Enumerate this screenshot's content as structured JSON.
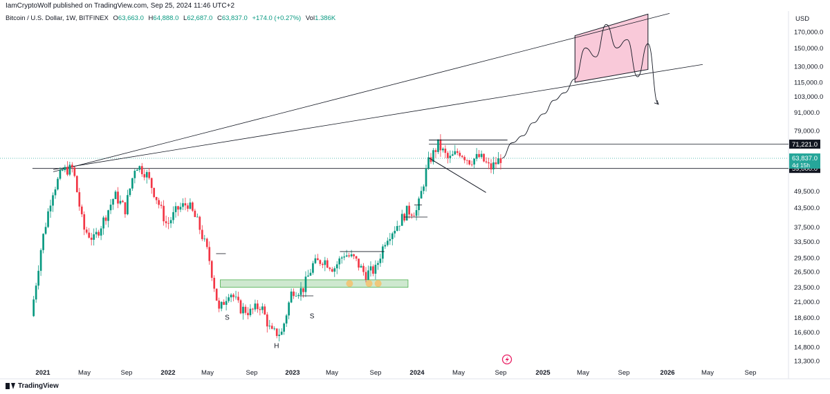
{
  "header": {
    "published": "IamCryptoWolf published on TradingView.com, Sep 25, 2024 11:46 UTC+2"
  },
  "legend": {
    "symbol": "Bitcoin / U.S. Dollar, 1W, BITFINEX",
    "open_label": "O",
    "open": "63,663.0",
    "high_label": "H",
    "high": "64,888.0",
    "low_label": "L",
    "low": "62,687.0",
    "close_label": "C",
    "close": "63,837.0",
    "change": "+174.0 (+0.27%)",
    "vol_label": "Vol",
    "vol": "1.386K"
  },
  "axis": {
    "currency": "USD"
  },
  "footer": {
    "brand": "TradingView"
  },
  "colors": {
    "up": "#089981",
    "down": "#f23645",
    "support_zone": "#a5d6a7",
    "target_zone": "#f8bbd0",
    "price_label_bg": "#26a69a",
    "level_label_bg": "#131722",
    "pivot_marker": "#f5c16c",
    "accent_icon": "#e91e63"
  },
  "chart_data": {
    "type": "candlestick",
    "title": "",
    "timeframe": "1W",
    "exchange": "BITFINEX",
    "price_scale": "log",
    "y_ticks": [
      13300,
      14800,
      16600,
      18600,
      21000,
      23500,
      26500,
      29500,
      33500,
      37500,
      43500,
      49500,
      59000,
      63837,
      71221,
      79000,
      91000,
      103000,
      115000,
      130000,
      150000,
      170000
    ],
    "y_tick_labels": [
      "13,300.0",
      "14,800.0",
      "16,600.0",
      "18,600.0",
      "21,000.0",
      "23,500.0",
      "26,500.0",
      "29,500.0",
      "33,500.0",
      "37,500.0",
      "43,500.0",
      "49,500.0",
      "59,000.0",
      "63,837.0",
      "71,221.0",
      "79,000.0",
      "91,000.0",
      "103,000.0",
      "115,000.0",
      "130,000.0",
      "150,000.0",
      "170,000.0"
    ],
    "x_tick_labels": [
      "2021",
      "May",
      "Sep",
      "2022",
      "May",
      "Sep",
      "2023",
      "May",
      "Sep",
      "2024",
      "May",
      "Sep",
      "2025",
      "May",
      "Sep",
      "2026",
      "May",
      "Sep"
    ],
    "x_ticks_bold": [
      "2021",
      "2022",
      "2023",
      "2024",
      "2025",
      "2026"
    ],
    "current_price": {
      "value": "63,837.0",
      "countdown": "4d 15h"
    },
    "horizontal_levels": [
      {
        "value": 71221,
        "label": "71,221.0"
      },
      {
        "value": 59000,
        "label": "59,000.0"
      }
    ],
    "support_zone": {
      "low": 23500,
      "high": 24900,
      "from": "2022-Jun",
      "to": "2023-Dec"
    },
    "target_zone": {
      "low": 113000,
      "high": 195000,
      "from": "2025-Apr",
      "to": "2025-Nov"
    },
    "pattern_labels": [
      "S",
      "H",
      "S"
    ],
    "price_path": [
      [
        "2020-Dec",
        18800
      ],
      [
        "2021-Jan",
        33000
      ],
      [
        "2021-Feb",
        49000
      ],
      [
        "2021-Mar",
        58000
      ],
      [
        "2021-Apr",
        59000
      ],
      [
        "2021-May",
        37000
      ],
      [
        "2021-Jun",
        34000
      ],
      [
        "2021-Jul",
        40000
      ],
      [
        "2021-Aug",
        48000
      ],
      [
        "2021-Sep",
        43000
      ],
      [
        "2021-Oct",
        61000
      ],
      [
        "2021-Nov",
        57000
      ],
      [
        "2021-Dec",
        47000
      ],
      [
        "2022-Jan",
        38000
      ],
      [
        "2022-Feb",
        43000
      ],
      [
        "2022-Mar",
        45000
      ],
      [
        "2022-Apr",
        38500
      ],
      [
        "2022-May",
        30000
      ],
      [
        "2022-Jun",
        19500
      ],
      [
        "2022-Jul",
        23000
      ],
      [
        "2022-Aug",
        20000
      ],
      [
        "2022-Sep",
        19400
      ],
      [
        "2022-Oct",
        20500
      ],
      [
        "2022-Nov",
        16500
      ],
      [
        "2022-Dec",
        16500
      ],
      [
        "2023-Jan",
        23000
      ],
      [
        "2023-Feb",
        23000
      ],
      [
        "2023-Mar",
        28000
      ],
      [
        "2023-Apr",
        29200
      ],
      [
        "2023-May",
        27200
      ],
      [
        "2023-Jun",
        30500
      ],
      [
        "2023-Jul",
        29200
      ],
      [
        "2023-Aug",
        26000
      ],
      [
        "2023-Sep",
        27000
      ],
      [
        "2023-Oct",
        34500
      ],
      [
        "2023-Nov",
        37800
      ],
      [
        "2023-Dec",
        42300
      ],
      [
        "2024-Jan",
        42500
      ],
      [
        "2024-Feb",
        61000
      ],
      [
        "2024-Mar",
        71000
      ],
      [
        "2024-Apr",
        63000
      ],
      [
        "2024-May",
        67500
      ],
      [
        "2024-Jun",
        62700
      ],
      [
        "2024-Jul",
        64600
      ],
      [
        "2024-Aug",
        59000
      ],
      [
        "2024-Sep",
        63837
      ]
    ],
    "projection": [
      [
        "2024-Sep",
        63837
      ],
      [
        "2024-Oct",
        72000
      ],
      [
        "2024-Nov",
        76000
      ],
      [
        "2024-Dec",
        84000
      ],
      [
        "2025-Jan",
        90000
      ],
      [
        "2025-Feb",
        100000
      ],
      [
        "2025-Mar",
        106000
      ],
      [
        "2025-Apr",
        118000
      ],
      [
        "2025-May",
        150000
      ],
      [
        "2025-Jun",
        140000
      ],
      [
        "2025-Jul",
        180000
      ],
      [
        "2025-Aug",
        150000
      ],
      [
        "2025-Sep",
        160000
      ],
      [
        "2025-Oct",
        120000
      ],
      [
        "2025-Nov",
        155000
      ],
      [
        "2025-Dec",
        97000
      ]
    ]
  }
}
